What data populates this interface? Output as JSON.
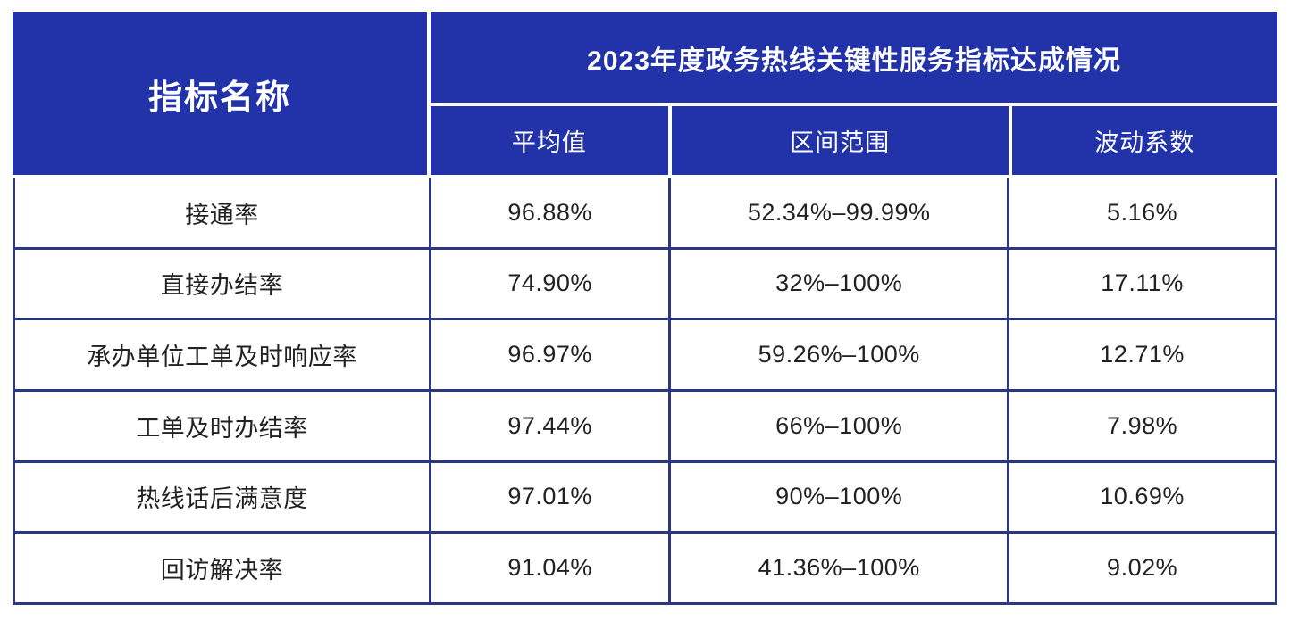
{
  "chart_data": {
    "type": "table",
    "title": "2023年度政务热线关键性服务指标达成情况",
    "corner_header": "指标名称",
    "sub_headers": [
      "平均值",
      "区间范围",
      "波动系数"
    ],
    "columns": [
      "指标名称",
      "平均值",
      "区间范围",
      "波动系数"
    ],
    "rows": [
      [
        "接通率",
        "96.88%",
        "52.34%–99.99%",
        "5.16%"
      ],
      [
        "直接办结率",
        "74.90%",
        "32%–100%",
        "17.11%"
      ],
      [
        "承办单位工单及时响应率",
        "96.97%",
        "59.26%–100%",
        "12.71%"
      ],
      [
        "工单及时办结率",
        "97.44%",
        "66%–100%",
        "7.98%"
      ],
      [
        "热线话后满意度",
        "97.01%",
        "90%–100%",
        "10.69%"
      ],
      [
        "回访解决率",
        "91.04%",
        "41.36%–100%",
        "9.02%"
      ]
    ],
    "layout_hints": {
      "header_two_tier": true,
      "corner_cell_spans_header_rows": true,
      "grid": "on"
    }
  },
  "colors": {
    "header_bg": "#2232a8",
    "header_text": "#ffffff",
    "body_border": "#2b3780",
    "body_text": "#222222",
    "page_bg": "#ffffff"
  }
}
